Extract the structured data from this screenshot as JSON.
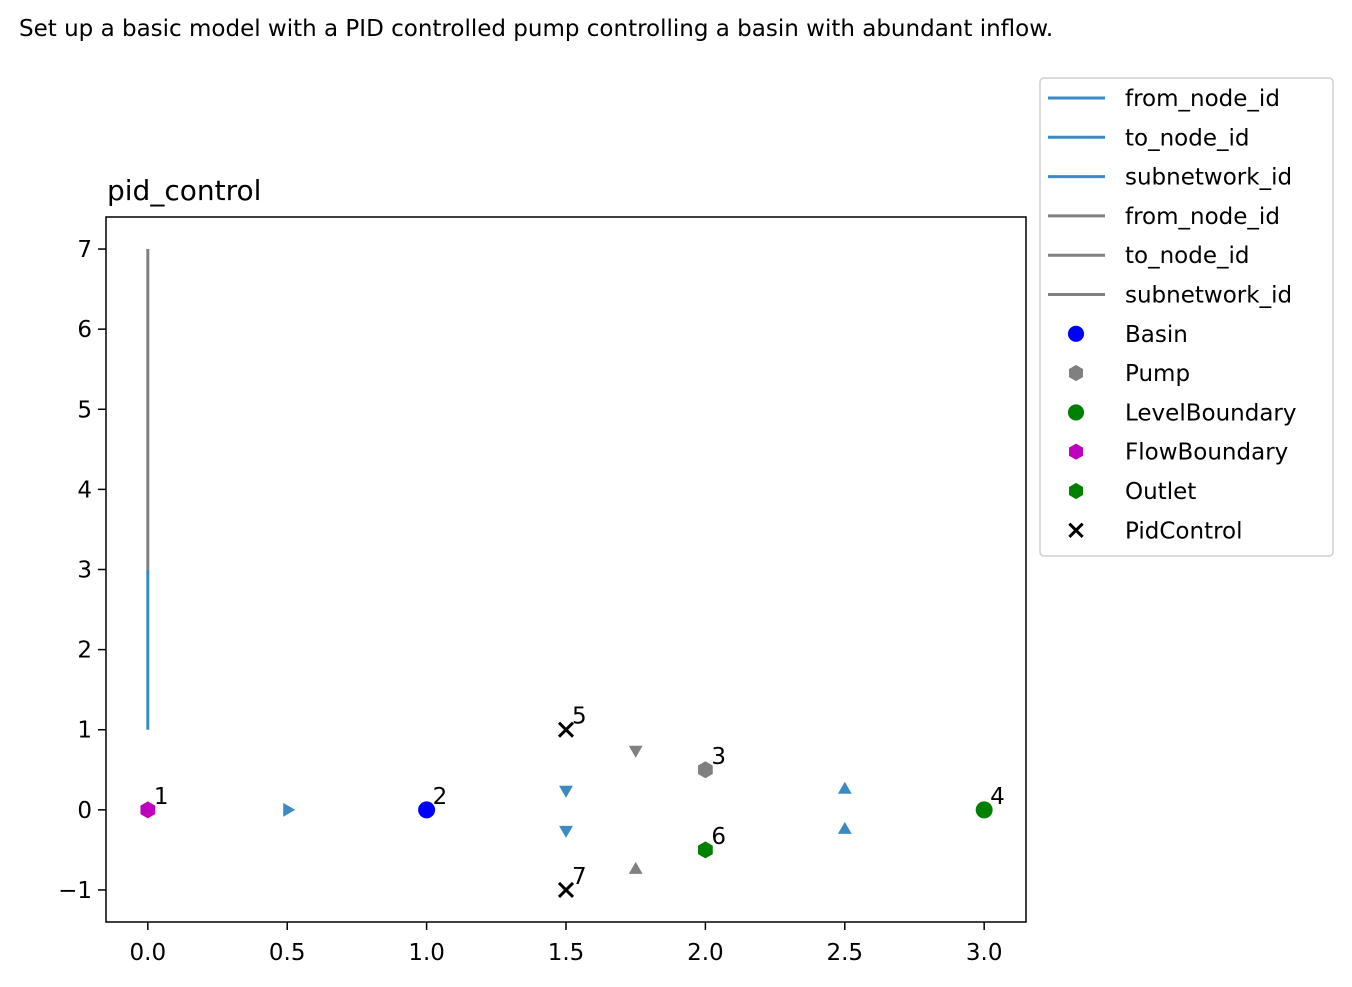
{
  "caption": "Set up a basic model with a PID controlled pump controlling a basin with abundant inflow.",
  "colors": {
    "edge_flow": "#3b8bc2",
    "edge_control": "#808080",
    "basin": "#0000ff",
    "pump": "#808080",
    "level_boundary": "#008000",
    "flow_boundary": "#bf00bf",
    "outlet": "#008000",
    "pid_control": "#000000"
  },
  "chart_data": {
    "type": "scatter",
    "title": "pid_control",
    "xlim": [
      -0.15,
      3.15
    ],
    "ylim": [
      -1.4,
      7.4
    ],
    "xticks": [
      0.0,
      0.5,
      1.0,
      1.5,
      2.0,
      2.5,
      3.0
    ],
    "xtick_labels": [
      "0.0",
      "0.5",
      "1.0",
      "1.5",
      "2.0",
      "2.5",
      "3.0"
    ],
    "yticks": [
      -1,
      0,
      1,
      2,
      3,
      4,
      5,
      6,
      7
    ],
    "ytick_labels": [
      "−1",
      "0",
      "1",
      "2",
      "3",
      "4",
      "5",
      "6",
      "7"
    ],
    "grid": false,
    "legend_position": "outside-right-top",
    "legend": [
      {
        "label": "from_node_id",
        "kind": "line",
        "color": "#3b8bc2"
      },
      {
        "label": "to_node_id",
        "kind": "line",
        "color": "#3b8bc2"
      },
      {
        "label": "subnetwork_id",
        "kind": "line",
        "color": "#3b8bc2"
      },
      {
        "label": "from_node_id",
        "kind": "line",
        "color": "#808080"
      },
      {
        "label": "to_node_id",
        "kind": "line",
        "color": "#808080"
      },
      {
        "label": "subnetwork_id",
        "kind": "line",
        "color": "#808080"
      },
      {
        "label": "Basin",
        "kind": "circle",
        "color": "#0000ff"
      },
      {
        "label": "Pump",
        "kind": "hexagon",
        "color": "#808080"
      },
      {
        "label": "LevelBoundary",
        "kind": "circle",
        "color": "#008000"
      },
      {
        "label": "FlowBoundary",
        "kind": "hexagon",
        "color": "#bf00bf"
      },
      {
        "label": "Outlet",
        "kind": "hexagon",
        "color": "#008000"
      },
      {
        "label": "PidControl",
        "kind": "x",
        "color": "#000000"
      }
    ],
    "edge_segments": [
      {
        "color": "#3b8bc2",
        "x": [
          0,
          0
        ],
        "y": [
          1,
          3
        ]
      },
      {
        "color": "#808080",
        "x": [
          0,
          0
        ],
        "y": [
          3,
          7
        ]
      }
    ],
    "nodes": [
      {
        "id": "1",
        "type": "FlowBoundary",
        "x": 0,
        "y": 0,
        "marker": "hexagon",
        "color": "#bf00bf"
      },
      {
        "id": "2",
        "type": "Basin",
        "x": 1,
        "y": 0,
        "marker": "circle",
        "color": "#0000ff"
      },
      {
        "id": "3",
        "type": "Pump",
        "x": 2,
        "y": 0.5,
        "marker": "hexagon",
        "color": "#808080"
      },
      {
        "id": "4",
        "type": "LevelBoundary",
        "x": 3,
        "y": 0,
        "marker": "circle",
        "color": "#008000"
      },
      {
        "id": "5",
        "type": "PidControl",
        "x": 1.5,
        "y": 1,
        "marker": "x",
        "color": "#000000"
      },
      {
        "id": "6",
        "type": "Outlet",
        "x": 2,
        "y": -0.5,
        "marker": "hexagon",
        "color": "#008000"
      },
      {
        "id": "7",
        "type": "PidControl",
        "x": 1.5,
        "y": -1,
        "marker": "x",
        "color": "#000000"
      }
    ],
    "edge_arrows": [
      {
        "x": 0.5,
        "y": 0,
        "direction": "right",
        "color": "#3b8bc2"
      },
      {
        "x": 1.5,
        "y": 0.25,
        "direction": "down",
        "color": "#3b8bc2"
      },
      {
        "x": 1.5,
        "y": -0.25,
        "direction": "down",
        "color": "#3b8bc2"
      },
      {
        "x": 2.5,
        "y": 0.25,
        "direction": "up",
        "color": "#3b8bc2"
      },
      {
        "x": 2.5,
        "y": -0.25,
        "direction": "up",
        "color": "#3b8bc2"
      },
      {
        "x": 1.75,
        "y": 0.75,
        "direction": "up-left",
        "color": "#808080"
      },
      {
        "x": 1.75,
        "y": -0.75,
        "direction": "down-left",
        "color": "#808080"
      }
    ]
  }
}
